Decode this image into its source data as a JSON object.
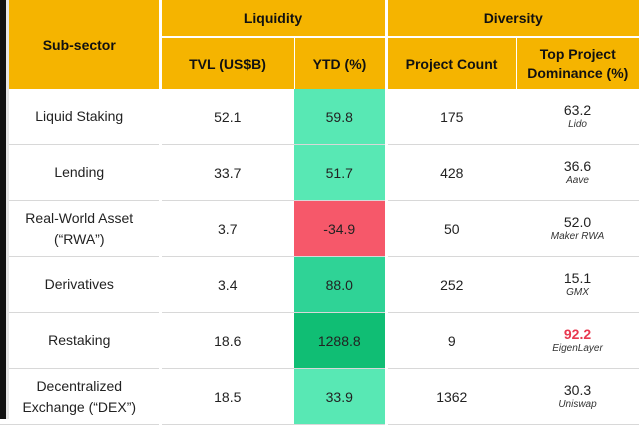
{
  "header": {
    "groups": {
      "liquidity": "Liquidity",
      "diversity": "Diversity"
    },
    "columns": {
      "subsector": "Sub-sector",
      "tvl": "TVL (US$B)",
      "ytd": "YTD (%)",
      "project_count": "Project Count",
      "dominance_line1": "Top Project",
      "dominance_line2": "Dominance (%)"
    }
  },
  "rows": [
    {
      "sector": "Liquid Staking",
      "sector2": "",
      "tvl": "52.1",
      "ytd": "59.8",
      "ytd_color": "#58e8b4",
      "count": "175",
      "dom": "63.2",
      "dom_highlight": false,
      "project": "Lido"
    },
    {
      "sector": "Lending",
      "sector2": "",
      "tvl": "33.7",
      "ytd": "51.7",
      "ytd_color": "#58e8b4",
      "count": "428",
      "dom": "36.6",
      "dom_highlight": false,
      "project": "Aave"
    },
    {
      "sector": "Real-World Asset",
      "sector2": "(“RWA”)",
      "tvl": "3.7",
      "ytd": "-34.9",
      "ytd_color": "#f6586a",
      "count": "50",
      "dom": "52.0",
      "dom_highlight": false,
      "project": "Maker RWA"
    },
    {
      "sector": "Derivatives",
      "sector2": "",
      "tvl": "3.4",
      "ytd": "88.0",
      "ytd_color": "#2fd396",
      "count": "252",
      "dom": "15.1",
      "dom_highlight": false,
      "project": "GMX"
    },
    {
      "sector": "Restaking",
      "sector2": "",
      "tvl": "18.6",
      "ytd": "1288.8",
      "ytd_color": "#10be74",
      "count": "9",
      "dom": "92.2",
      "dom_highlight": true,
      "project": "EigenLayer"
    },
    {
      "sector": "Decentralized",
      "sector2": "Exchange (“DEX”)",
      "tvl": "18.5",
      "ytd": "33.9",
      "ytd_color": "#58e8b4",
      "count": "1362",
      "dom": "30.3",
      "dom_highlight": false,
      "project": "Uniswap"
    }
  ],
  "colors": {
    "header_bg": "#f5b400",
    "highlight_text": "#e8384f"
  }
}
